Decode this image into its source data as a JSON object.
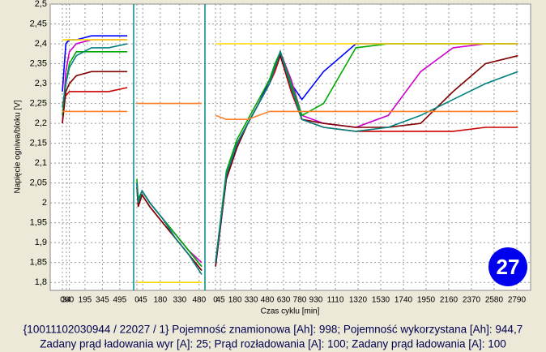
{
  "chart_data": {
    "type": "line",
    "y_label": "Napięcie ogniwa/bloku [V]",
    "x_label": "Czas cyklu [min]",
    "badge": "27",
    "footer": [
      "{10011102030944 / 22027 / 1} Pojemność znamionowa [Ah]: 998;  Pojemność wykorzystana [Ah]: 944,7",
      "Zadany prąd ładowania wyr [A]: 25;  Prąd rozładowania [A]: 100;  Zadany prąd ładowania [A]: 100"
    ],
    "ylim": [
      1.78,
      2.5
    ],
    "yticks": [
      {
        "value": 1.8,
        "label": "1,8"
      },
      {
        "value": 1.85,
        "label": "1,85"
      },
      {
        "value": 1.9,
        "label": "1,9"
      },
      {
        "value": 1.95,
        "label": "1,95"
      },
      {
        "value": 2.0,
        "label": "2"
      },
      {
        "value": 2.05,
        "label": "2,05"
      },
      {
        "value": 2.1,
        "label": "2,1"
      },
      {
        "value": 2.15,
        "label": "2,15"
      },
      {
        "value": 2.2,
        "label": "2,2"
      },
      {
        "value": 2.25,
        "label": "2,25"
      },
      {
        "value": 2.3,
        "label": "2,3"
      },
      {
        "value": 2.35,
        "label": "2,35"
      },
      {
        "value": 2.4,
        "label": "2,4"
      },
      {
        "value": 2.45,
        "label": "2,45"
      },
      {
        "value": 2.5,
        "label": "2,5"
      }
    ],
    "grid": true,
    "x_segments": [
      {
        "xlim": [
          -105,
          615
        ],
        "ticks": [
          0,
          34,
          60,
          195,
          345,
          495
        ],
        "x": [
          0,
          30,
          60,
          120,
          250,
          400,
          560
        ]
      },
      {
        "xlim": [
          -25,
          525
        ],
        "ticks": [
          0,
          45,
          180,
          330,
          480
        ],
        "x": [
          0,
          10,
          40,
          100,
          200,
          300,
          400,
          500
        ]
      },
      {
        "xlim": [
          -98,
          2918
        ],
        "ticks": [
          0,
          45,
          180,
          330,
          480,
          630,
          780,
          930,
          1110,
          1320,
          1530,
          1740,
          1950,
          2160,
          2370,
          2580,
          2790
        ],
        "x": [
          0,
          100,
          200,
          300,
          400,
          500,
          550,
          600,
          700,
          800,
          1000,
          1300,
          1600,
          1900,
          2200,
          2500,
          2800
        ]
      }
    ],
    "series": [
      {
        "color": "#0000ff",
        "values": [
          [
            2.28,
            2.4,
            2.41,
            2.41,
            2.42,
            2.42,
            2.42
          ],
          [
            2.05,
            2.0,
            2.03,
            2.0,
            1.96,
            1.92,
            1.88,
            1.84
          ],
          [
            1.84,
            2.06,
            2.14,
            2.2,
            2.25,
            2.31,
            2.34,
            2.38,
            2.3,
            2.26,
            2.33,
            2.4,
            2.4,
            2.4,
            2.4,
            2.4,
            2.4
          ]
        ]
      },
      {
        "color": "#cc0000",
        "values": [
          [
            2.25,
            2.27,
            2.28,
            2.28,
            2.28,
            2.28,
            2.29
          ],
          [
            2.04,
            2.0,
            2.02,
            1.99,
            1.95,
            1.91,
            1.87,
            1.83
          ],
          [
            1.85,
            2.07,
            2.15,
            2.2,
            2.25,
            2.3,
            2.33,
            2.37,
            2.28,
            2.21,
            2.19,
            2.18,
            2.18,
            2.18,
            2.18,
            2.19,
            2.19
          ]
        ]
      },
      {
        "color": "#cc00cc",
        "values": [
          [
            2.2,
            2.33,
            2.38,
            2.4,
            2.41,
            2.41,
            2.41
          ],
          [
            2.05,
            2.0,
            2.03,
            2.0,
            1.96,
            1.92,
            1.88,
            1.85
          ],
          [
            1.85,
            2.07,
            2.15,
            2.2,
            2.25,
            2.3,
            2.34,
            2.38,
            2.31,
            2.22,
            2.2,
            2.19,
            2.22,
            2.33,
            2.39,
            2.4,
            2.4
          ]
        ]
      },
      {
        "color": "#00aa00",
        "values": [
          [
            2.22,
            2.3,
            2.35,
            2.38,
            2.38,
            2.38,
            2.38
          ],
          [
            2.06,
            2.01,
            2.03,
            2.0,
            1.96,
            1.92,
            1.88,
            1.84
          ],
          [
            1.85,
            2.08,
            2.16,
            2.21,
            2.26,
            2.31,
            2.35,
            2.38,
            2.3,
            2.22,
            2.25,
            2.39,
            2.4,
            2.4,
            2.4,
            2.4,
            2.4
          ]
        ]
      },
      {
        "color": "#800000",
        "values": [
          [
            2.2,
            2.28,
            2.3,
            2.32,
            2.33,
            2.33,
            2.33
          ],
          [
            2.04,
            1.99,
            2.02,
            1.99,
            1.95,
            1.91,
            1.87,
            1.83
          ],
          [
            1.84,
            2.06,
            2.14,
            2.2,
            2.25,
            2.3,
            2.34,
            2.37,
            2.29,
            2.21,
            2.2,
            2.19,
            2.19,
            2.2,
            2.28,
            2.35,
            2.37
          ]
        ]
      },
      {
        "color": "#008080",
        "values": [
          [
            2.24,
            2.3,
            2.34,
            2.37,
            2.39,
            2.39,
            2.4
          ],
          [
            2.05,
            2.0,
            2.03,
            2.0,
            1.96,
            1.91,
            1.87,
            1.82
          ],
          [
            1.85,
            2.07,
            2.15,
            2.2,
            2.25,
            2.3,
            2.34,
            2.38,
            2.29,
            2.21,
            2.19,
            2.18,
            2.19,
            2.22,
            2.26,
            2.3,
            2.33
          ]
        ]
      },
      {
        "color": "#ff7f27",
        "values": [
          [
            2.23,
            2.23,
            2.23,
            2.23,
            2.23,
            2.23,
            2.23
          ],
          [
            2.25,
            2.25,
            2.25,
            2.25,
            2.25,
            2.25,
            2.25,
            2.25
          ],
          [
            2.22,
            2.21,
            2.21,
            2.21,
            2.22,
            2.23,
            2.23,
            2.23,
            2.23,
            2.23,
            2.23,
            2.23,
            2.23,
            2.23,
            2.23,
            2.23,
            2.23
          ]
        ]
      },
      {
        "color": "#ffd700",
        "values": [
          [
            2.41,
            2.41,
            2.41,
            2.41,
            2.41,
            2.41,
            2.41
          ],
          [
            1.8,
            1.8,
            1.8,
            1.8,
            1.8,
            1.8,
            1.8,
            1.8
          ],
          [
            2.4,
            2.4,
            2.4,
            2.4,
            2.4,
            2.4,
            2.4,
            2.4,
            2.4,
            2.4,
            2.4,
            2.4,
            2.4,
            2.4,
            2.4,
            2.4,
            2.4
          ]
        ]
      }
    ]
  }
}
